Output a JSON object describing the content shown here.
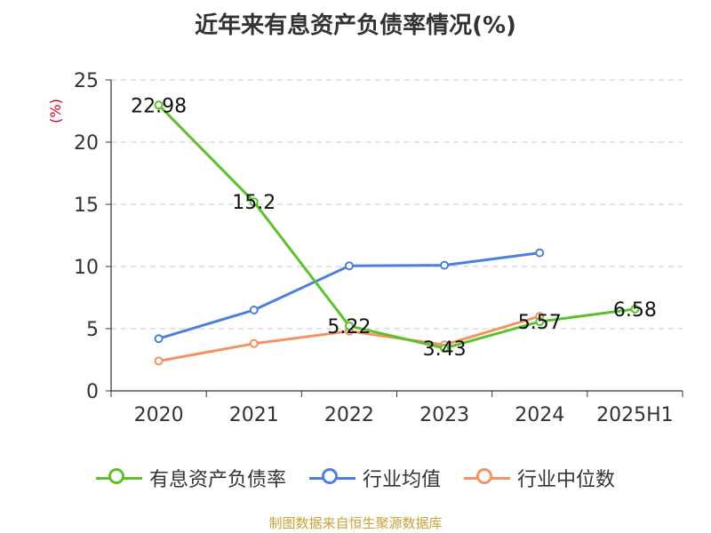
{
  "chart_data": {
    "type": "line",
    "title": "近年来有息资产负债率情况(%)",
    "ylabel": "(%)",
    "xlabel": "",
    "categories": [
      "2020",
      "2021",
      "2022",
      "2023",
      "2024",
      "2025H1"
    ],
    "ylim": [
      0,
      25
    ],
    "yticks": [
      0,
      5,
      10,
      15,
      20,
      25
    ],
    "grid": true,
    "legend_position": "bottom",
    "series": [
      {
        "name": "有息资产负债率",
        "color": "#5cc12a",
        "values": [
          22.98,
          15.2,
          5.22,
          3.43,
          5.57,
          6.58
        ],
        "labels": [
          "22.98",
          "15.2",
          "5.22",
          "3.43",
          "5.57",
          "6.58"
        ]
      },
      {
        "name": "行业均值",
        "color": "#4f7fdc",
        "values": [
          4.2,
          6.5,
          10.05,
          10.1,
          11.1,
          null
        ]
      },
      {
        "name": "行业中位数",
        "color": "#f29361",
        "values": [
          2.4,
          3.8,
          4.8,
          3.7,
          6.0,
          null
        ]
      }
    ]
  },
  "source": "制图数据来自恒生聚源数据库"
}
